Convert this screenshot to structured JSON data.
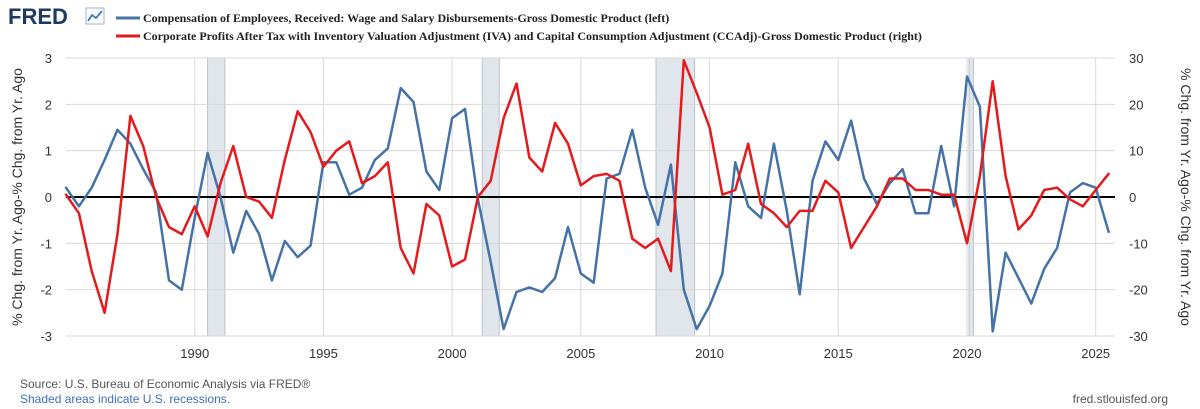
{
  "header": {
    "logo_text": "FRED",
    "logo_icon": "line-chart-icon"
  },
  "colors": {
    "series1": "#4572a7",
    "series2": "#e41a1c",
    "recession": "#e1e6ec",
    "grid": "#d9d9d9",
    "zero_line": "#000000",
    "text": "#333333",
    "footer_blue": "#3f6ec1",
    "footer_gray": "#555555"
  },
  "footer": {
    "source": "Source: U.S. Bureau of Economic Analysis via FRED®",
    "recession_note": "Shaded areas indicate U.S. recessions.",
    "url": "fred.stlouisfed.org"
  },
  "chart_data": {
    "type": "line",
    "xlim": [
      1985.0,
      2025.75
    ],
    "xticks": [
      1990,
      1995,
      2000,
      2005,
      2010,
      2015,
      2020,
      2025
    ],
    "grid": true,
    "legend_position": "top",
    "recessions": [
      [
        1990.5,
        1991.17
      ],
      [
        2001.17,
        2001.83
      ],
      [
        2007.92,
        2009.42
      ],
      [
        2020.08,
        2020.25
      ]
    ],
    "y_left": {
      "label": "% Chg. from Yr. Ago-% Chg. from Yr. Ago",
      "ylim": [
        -3,
        3
      ],
      "ticks": [
        3,
        2,
        1,
        0,
        -1,
        -2,
        -3
      ]
    },
    "y_right": {
      "label": "% Chg. from Yr. Ago-% Chg. from Yr. Ago",
      "ylim": [
        -30,
        30
      ],
      "ticks": [
        30,
        20,
        10,
        0,
        -10,
        -20,
        -30
      ]
    },
    "series": [
      {
        "name": "Compensation of Employees, Received: Wage and Salary Disbursements-Gross Domestic Product (left)",
        "axis": "left",
        "color": "#4572a7",
        "x": [
          1985.0,
          1985.5,
          1986.0,
          1986.5,
          1987.0,
          1987.5,
          1988.0,
          1988.5,
          1989.0,
          1989.5,
          1990.0,
          1990.5,
          1991.0,
          1991.5,
          1992.0,
          1992.5,
          1993.0,
          1993.5,
          1994.0,
          1994.5,
          1995.0,
          1995.5,
          1996.0,
          1996.5,
          1997.0,
          1997.5,
          1998.0,
          1998.5,
          1999.0,
          1999.5,
          2000.0,
          2000.5,
          2001.0,
          2001.5,
          2002.0,
          2002.5,
          2003.0,
          2003.5,
          2004.0,
          2004.5,
          2005.0,
          2005.5,
          2006.0,
          2006.5,
          2007.0,
          2007.5,
          2008.0,
          2008.5,
          2009.0,
          2009.5,
          2010.0,
          2010.5,
          2011.0,
          2011.5,
          2012.0,
          2012.5,
          2013.0,
          2013.5,
          2014.0,
          2014.5,
          2015.0,
          2015.5,
          2016.0,
          2016.5,
          2017.0,
          2017.5,
          2018.0,
          2018.5,
          2019.0,
          2019.5,
          2020.0,
          2020.5,
          2021.0,
          2021.5,
          2022.0,
          2022.5,
          2023.0,
          2023.5,
          2024.0,
          2024.5,
          2025.0,
          2025.5
        ],
        "values": [
          0.2,
          -0.2,
          0.2,
          0.8,
          1.45,
          1.15,
          0.6,
          0.1,
          -1.8,
          -2.0,
          -0.45,
          0.95,
          0.0,
          -1.2,
          -0.3,
          -0.8,
          -1.8,
          -0.95,
          -1.3,
          -1.05,
          0.75,
          0.75,
          0.05,
          0.2,
          0.8,
          1.05,
          2.35,
          2.05,
          0.55,
          0.15,
          1.7,
          1.9,
          -0.05,
          -1.4,
          -2.85,
          -2.05,
          -1.95,
          -2.05,
          -1.75,
          -0.65,
          -1.65,
          -1.85,
          0.4,
          0.5,
          1.45,
          0.2,
          -0.6,
          0.7,
          -2.0,
          -2.85,
          -2.35,
          -1.65,
          0.75,
          -0.2,
          -0.45,
          1.15,
          -0.3,
          -2.1,
          0.35,
          1.2,
          0.8,
          1.65,
          0.4,
          -0.15,
          0.3,
          0.6,
          -0.35,
          -0.35,
          1.1,
          -0.2,
          2.6,
          1.95,
          -2.9,
          -1.2,
          -1.75,
          -2.3,
          -1.55,
          -1.1,
          0.1,
          0.3,
          0.2,
          -0.75
        ]
      },
      {
        "name": "Corporate Profits After Tax with Inventory Valuation Adjustment (IVA) and Capital Consumption Adjustment (CCAdj)-Gross Domestic Product (right)",
        "axis": "right",
        "color": "#e41a1c",
        "x": [
          1985.0,
          1985.5,
          1986.0,
          1986.5,
          1987.0,
          1987.5,
          1988.0,
          1988.5,
          1989.0,
          1989.5,
          1990.0,
          1990.5,
          1991.0,
          1991.5,
          1992.0,
          1992.5,
          1993.0,
          1993.5,
          1994.0,
          1994.5,
          1995.0,
          1995.5,
          1996.0,
          1996.5,
          1997.0,
          1997.5,
          1998.0,
          1998.5,
          1999.0,
          1999.5,
          2000.0,
          2000.5,
          2001.0,
          2001.5,
          2002.0,
          2002.5,
          2003.0,
          2003.5,
          2004.0,
          2004.5,
          2005.0,
          2005.5,
          2006.0,
          2006.5,
          2007.0,
          2007.5,
          2008.0,
          2008.5,
          2009.0,
          2009.5,
          2010.0,
          2010.5,
          2011.0,
          2011.5,
          2012.0,
          2012.5,
          2013.0,
          2013.5,
          2014.0,
          2014.5,
          2015.0,
          2015.5,
          2016.0,
          2016.5,
          2017.0,
          2017.5,
          2018.0,
          2018.5,
          2019.0,
          2019.5,
          2020.0,
          2020.5,
          2021.0,
          2021.5,
          2022.0,
          2022.5,
          2023.0,
          2023.5,
          2024.0,
          2024.5,
          2025.0,
          2025.5
        ],
        "values": [
          0.5,
          -3.5,
          -16.0,
          -25.0,
          -8.0,
          17.5,
          11.0,
          0.0,
          -6.5,
          -8.0,
          -2.0,
          -8.5,
          3.0,
          11.0,
          0.0,
          -1.0,
          -4.5,
          8.0,
          18.5,
          14.0,
          6.5,
          10.0,
          12.0,
          3.0,
          4.5,
          7.5,
          -11.0,
          -16.5,
          -1.5,
          -4.0,
          -15.0,
          -13.5,
          0.0,
          3.5,
          17.0,
          24.5,
          8.5,
          5.5,
          16.0,
          11.5,
          2.5,
          4.5,
          5.0,
          3.5,
          -9.0,
          -11.0,
          -9.0,
          -16.0,
          29.5,
          22.5,
          15.0,
          0.5,
          1.5,
          11.5,
          -1.5,
          -3.5,
          -6.5,
          -3.0,
          -3.0,
          3.5,
          1.0,
          -11.0,
          -6.5,
          -2.0,
          4.0,
          4.0,
          1.5,
          1.5,
          0.5,
          0.5,
          -10.0,
          4.5,
          25.0,
          4.5,
          -7.0,
          -4.0,
          1.5,
          2.0,
          -0.5,
          -2.0,
          1.5,
          5.0
        ]
      }
    ]
  }
}
